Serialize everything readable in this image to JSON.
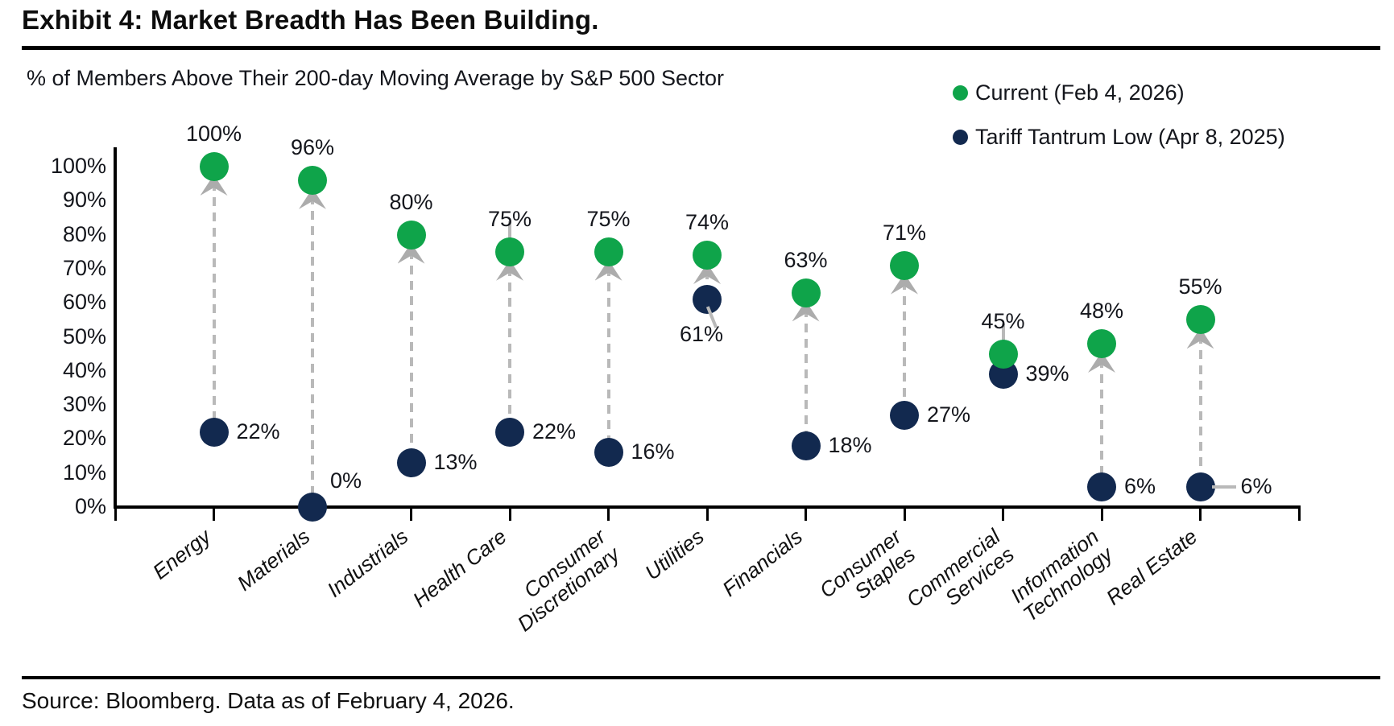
{
  "page": {
    "title": "Exhibit 4: Market Breadth Has Been Building.",
    "source_note": "Source: Bloomberg. Data as of February 4, 2026."
  },
  "chart_data": {
    "type": "scatter",
    "subtype": "dumbbell-dot-plot",
    "title": "% of Members Above Their 200-day Moving Average by S&P 500 Sector",
    "categories": [
      "Energy",
      "Materials",
      "Industrials",
      "Health Care",
      "Consumer\nDiscretionary",
      "Utilities",
      "Financials",
      "Consumer\nStaples",
      "Commercial\nServices",
      "Information\nTechnology",
      "Real Estate"
    ],
    "series": [
      {
        "name": "Current (Feb 4, 2026)",
        "color": "#0FA44A",
        "values": [
          100,
          96,
          80,
          75,
          75,
          74,
          63,
          71,
          45,
          48,
          55
        ]
      },
      {
        "name": "Tariff Tantrum Low (Apr 8, 2025)",
        "color": "#12294F",
        "values": [
          22,
          0,
          13,
          22,
          16,
          61,
          18,
          27,
          39,
          6,
          6
        ]
      }
    ],
    "point_label_format": "percent",
    "ylim": [
      0,
      100
    ],
    "ytick_step": 10,
    "ytick_format": "percent",
    "grid": false,
    "legend_position": "top-right",
    "connector_style": "dashed-arrow-up",
    "connector_color": "#B9B9B9",
    "arrow_color": "#ACACAC",
    "axis_color": "#000000",
    "text_color": "#14161C",
    "label_layout": [
      {
        "low": "right"
      },
      {
        "low": "above-right"
      },
      {
        "low": "right"
      },
      {
        "low": "right",
        "stub": true
      },
      {
        "low": "right"
      },
      {
        "low": "below",
        "leader": "diagonal"
      },
      {
        "low": "right"
      },
      {
        "low": "right"
      },
      {
        "low": "right",
        "stub": true,
        "arrow": false
      },
      {
        "low": "right"
      },
      {
        "low": "right",
        "leader": "horizontal"
      }
    ]
  }
}
